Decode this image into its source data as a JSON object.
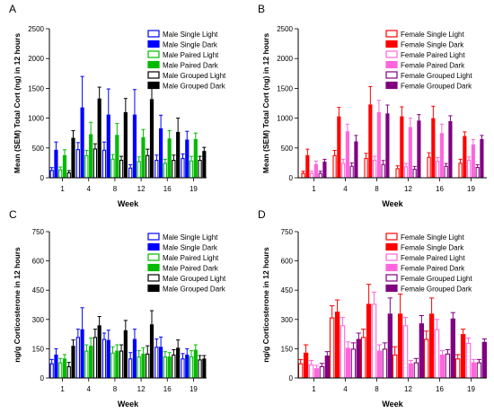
{
  "chart_data": [
    {
      "type": "bar",
      "panel": "A",
      "xlabel": "Week",
      "ylabel": "Mean (SEM) Total Cort (ng) in 12 hours",
      "categories": [
        "1",
        "4",
        "8",
        "12",
        "16",
        "19"
      ],
      "ylim": [
        0,
        2500
      ],
      "yticks": [
        0,
        500,
        1000,
        1500,
        2000,
        2500
      ],
      "legend_position": "top-right",
      "series": [
        {
          "name": "Male Single Light",
          "color": "#0000ff",
          "fill": "open",
          "values": [
            130,
            480,
            470,
            170,
            300,
            330
          ],
          "errors": [
            40,
            110,
            130,
            50,
            80,
            70
          ]
        },
        {
          "name": "Male Single Dark",
          "color": "#0000ff",
          "fill": "solid",
          "values": [
            470,
            1180,
            1060,
            1060,
            830,
            640
          ],
          "errors": [
            130,
            520,
            430,
            420,
            220,
            140
          ]
        },
        {
          "name": "Male Paired Light",
          "color": "#00bb00",
          "fill": "open",
          "values": [
            140,
            380,
            320,
            280,
            250,
            290
          ],
          "errors": [
            40,
            80,
            70,
            70,
            60,
            70
          ]
        },
        {
          "name": "Male Paired Dark",
          "color": "#00bb00",
          "fill": "solid",
          "values": [
            380,
            730,
            720,
            680,
            660,
            650
          ],
          "errors": [
            90,
            200,
            190,
            130,
            130,
            100
          ]
        },
        {
          "name": "Male Grouped Light",
          "color": "#000000",
          "fill": "open",
          "values": [
            90,
            490,
            300,
            380,
            300,
            300
          ],
          "errors": [
            30,
            80,
            60,
            100,
            80,
            60
          ]
        },
        {
          "name": "Male Grouped Dark",
          "color": "#000000",
          "fill": "solid",
          "values": [
            670,
            1330,
            1100,
            1320,
            770,
            450
          ],
          "errors": [
            120,
            190,
            230,
            260,
            230,
            60
          ]
        }
      ]
    },
    {
      "type": "bar",
      "panel": "B",
      "xlabel": "Week",
      "ylabel": "Mean (SEM) Total Cort (ng) in 12 hours",
      "categories": [
        "1",
        "4",
        "8",
        "12",
        "16",
        "19"
      ],
      "ylim": [
        0,
        2500
      ],
      "yticks": [
        0,
        500,
        1000,
        1500,
        2000,
        2500
      ],
      "legend_position": "top-right",
      "series": [
        {
          "name": "Female Single Light",
          "color": "#ff0000",
          "fill": "open",
          "values": [
            80,
            380,
            330,
            160,
            350,
            250
          ],
          "errors": [
            30,
            80,
            80,
            40,
            70,
            60
          ]
        },
        {
          "name": "Female Single Dark",
          "color": "#ff0000",
          "fill": "solid",
          "values": [
            380,
            1030,
            1230,
            1030,
            1000,
            700
          ],
          "errors": [
            100,
            150,
            300,
            160,
            200,
            70
          ]
        },
        {
          "name": "Female Paired Light",
          "color": "#ff66dd",
          "fill": "open",
          "values": [
            80,
            250,
            300,
            190,
            280,
            300
          ],
          "errors": [
            30,
            60,
            60,
            50,
            60,
            50
          ]
        },
        {
          "name": "Female Paired Dark",
          "color": "#ff66dd",
          "fill": "solid",
          "values": [
            230,
            780,
            1100,
            850,
            750,
            560
          ],
          "errors": [
            50,
            120,
            200,
            150,
            150,
            80
          ]
        },
        {
          "name": "Female Grouped Light",
          "color": "#800080",
          "fill": "open",
          "values": [
            80,
            200,
            230,
            150,
            200,
            180
          ],
          "errors": [
            30,
            50,
            60,
            40,
            40,
            40
          ]
        },
        {
          "name": "Female Grouped Dark",
          "color": "#800080",
          "fill": "solid",
          "values": [
            270,
            610,
            1080,
            960,
            950,
            650
          ],
          "errors": [
            40,
            100,
            140,
            100,
            90,
            60
          ]
        }
      ]
    },
    {
      "type": "bar",
      "panel": "C",
      "xlabel": "Week",
      "ylabel": "ng/g Corticosterone in 12 hours",
      "categories": [
        "1",
        "4",
        "8",
        "12",
        "16",
        "19"
      ],
      "ylim": [
        0,
        750
      ],
      "yticks": [
        0,
        150,
        300,
        450,
        600,
        750
      ],
      "legend_position": "top-right",
      "series": [
        {
          "name": "Male Single Light",
          "color": "#0000ff",
          "fill": "open",
          "values": [
            75,
            210,
            200,
            100,
            160,
            100
          ],
          "errors": [
            20,
            40,
            30,
            30,
            40,
            25
          ]
        },
        {
          "name": "Male Single Dark",
          "color": "#0000ff",
          "fill": "solid",
          "values": [
            120,
            250,
            195,
            200,
            160,
            120
          ],
          "errors": [
            30,
            110,
            50,
            50,
            50,
            30
          ]
        },
        {
          "name": "Male Paired Light",
          "color": "#00bb00",
          "fill": "open",
          "values": [
            80,
            140,
            130,
            110,
            110,
            110
          ],
          "errors": [
            20,
            30,
            30,
            30,
            25,
            30
          ]
        },
        {
          "name": "Male Paired Dark",
          "color": "#00bb00",
          "fill": "solid",
          "values": [
            100,
            165,
            140,
            125,
            110,
            145
          ],
          "errors": [
            20,
            40,
            30,
            30,
            20,
            25
          ]
        },
        {
          "name": "Male Grouped Light",
          "color": "#000000",
          "fill": "open",
          "values": [
            60,
            210,
            140,
            125,
            120,
            95
          ],
          "errors": [
            20,
            40,
            30,
            40,
            25,
            20
          ]
        },
        {
          "name": "Male Grouped Dark",
          "color": "#000000",
          "fill": "solid",
          "values": [
            165,
            270,
            245,
            275,
            155,
            100
          ],
          "errors": [
            30,
            45,
            50,
            70,
            40,
            15
          ]
        }
      ]
    },
    {
      "type": "bar",
      "panel": "D",
      "xlabel": "Week",
      "ylabel": "ng/g Corticosterone in 12 hours",
      "categories": [
        "1",
        "4",
        "8",
        "12",
        "16",
        "19"
      ],
      "ylim": [
        0,
        750
      ],
      "yticks": [
        0,
        150,
        300,
        450,
        600,
        750
      ],
      "legend_position": "top-right",
      "series": [
        {
          "name": "Female Single Light",
          "color": "#ff0000",
          "fill": "open",
          "values": [
            75,
            310,
            210,
            120,
            200,
            100
          ],
          "errors": [
            20,
            60,
            40,
            40,
            40,
            20
          ]
        },
        {
          "name": "Female Single Dark",
          "color": "#ff0000",
          "fill": "solid",
          "values": [
            130,
            340,
            380,
            330,
            330,
            225
          ],
          "errors": [
            40,
            60,
            100,
            100,
            80,
            25
          ]
        },
        {
          "name": "Female Paired Light",
          "color": "#ff66dd",
          "fill": "open",
          "values": [
            70,
            270,
            380,
            270,
            250,
            180
          ],
          "errors": [
            20,
            40,
            60,
            40,
            50,
            25
          ]
        },
        {
          "name": "Female Paired Dark",
          "color": "#ff66dd",
          "fill": "solid",
          "values": [
            50,
            155,
            140,
            75,
            120,
            80
          ],
          "errors": [
            15,
            30,
            30,
            15,
            20,
            15
          ]
        },
        {
          "name": "Female Grouped Light",
          "color": "#800080",
          "fill": "open",
          "values": [
            60,
            150,
            150,
            80,
            125,
            80
          ],
          "errors": [
            15,
            30,
            30,
            20,
            20,
            15
          ]
        },
        {
          "name": "Female Grouped Dark",
          "color": "#800080",
          "fill": "solid",
          "values": [
            115,
            200,
            330,
            280,
            305,
            185
          ],
          "errors": [
            20,
            30,
            80,
            40,
            30,
            15
          ]
        }
      ]
    }
  ]
}
